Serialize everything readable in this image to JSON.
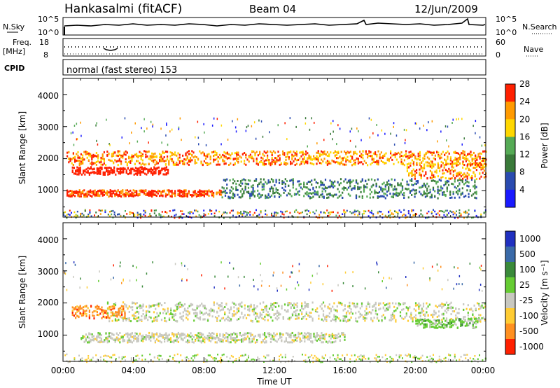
{
  "header": {
    "station": "Hankasalmi (fitACF)",
    "beam": "Beam 04",
    "date": "12/Jun/2009"
  },
  "panels": {
    "noise": {
      "left_label": "N.Sky",
      "right_label": "N.Search",
      "left_ticks": [
        "10^5",
        "10^0"
      ],
      "right_ticks": [
        "10^5",
        "10^0"
      ]
    },
    "freq": {
      "left_label_1": "Freq.",
      "left_label_2": "[MHz]",
      "right_label": "Nave",
      "left_ticks": [
        "18",
        "8"
      ],
      "right_ticks": [
        "60",
        "0"
      ]
    },
    "cpid": {
      "left_label": "CPID",
      "text": "normal (fast stereo) 153"
    }
  },
  "chart_data": [
    {
      "type": "heatmap",
      "title": "",
      "xlabel": "Time UT",
      "ylabel": "Slant Range [km]",
      "ylim": [
        180,
        4500
      ],
      "y_ticks": [
        "1000",
        "2000",
        "3000",
        "4000"
      ],
      "x_ticks": [
        "00:00",
        "04:00",
        "08:00",
        "12:00",
        "16:00",
        "20:00",
        "00:00"
      ],
      "colorbar": {
        "label": "Power [dB]",
        "ticks": [
          "4",
          "8",
          "12",
          "16",
          "20",
          "24",
          "28"
        ],
        "colors": [
          "#1a1aff",
          "#2a4bb0",
          "#3a7a3a",
          "#55aa55",
          "#ffd700",
          "#ff9a00",
          "#ff2000"
        ]
      },
      "bands": [
        {
          "t0": 0.2,
          "t1": 24.0,
          "r": 2050,
          "w": 220,
          "level": 5
        },
        {
          "t0": 0.2,
          "t1": 9.0,
          "r": 950,
          "w": 100,
          "level": 6
        },
        {
          "t0": 0.5,
          "t1": 6.0,
          "r": 1650,
          "w": 120,
          "level": 7
        },
        {
          "t0": 9.0,
          "t1": 23.5,
          "r": 1100,
          "w": 300,
          "level": 2
        },
        {
          "t0": 19.5,
          "t1": 24.0,
          "r": 1650,
          "w": 250,
          "level": 5
        }
      ]
    },
    {
      "type": "heatmap",
      "title": "",
      "xlabel": "Time UT",
      "ylabel": "Slant Range [km]",
      "ylim": [
        180,
        4500
      ],
      "y_ticks": [
        "1000",
        "2000",
        "3000",
        "4000"
      ],
      "x_ticks": [
        "00:00",
        "04:00",
        "08:00",
        "12:00",
        "16:00",
        "20:00",
        "00:00"
      ],
      "colorbar": {
        "label": "Velocity [m s⁻¹]",
        "ticks": [
          "1000",
          "500",
          "100",
          "25",
          "-25",
          "-100",
          "-500",
          "-1000"
        ],
        "colors": [
          "#2030c0",
          "#3a6aa8",
          "#3a8a3a",
          "#66cc33",
          "#c8c8c0",
          "#ffcc33",
          "#ff9020",
          "#ff2000"
        ]
      },
      "bands": [
        {
          "t0": 2.5,
          "t1": 24.0,
          "r": 1750,
          "w": 300,
          "level": 4
        },
        {
          "t0": 1.0,
          "t1": 16.0,
          "r": 950,
          "w": 150,
          "level": 4
        },
        {
          "t0": 0.5,
          "t1": 3.5,
          "r": 1750,
          "w": 200,
          "level": 6
        },
        {
          "t0": 20.0,
          "t1": 23.5,
          "r": 1400,
          "w": 150,
          "level": 3
        }
      ]
    }
  ]
}
